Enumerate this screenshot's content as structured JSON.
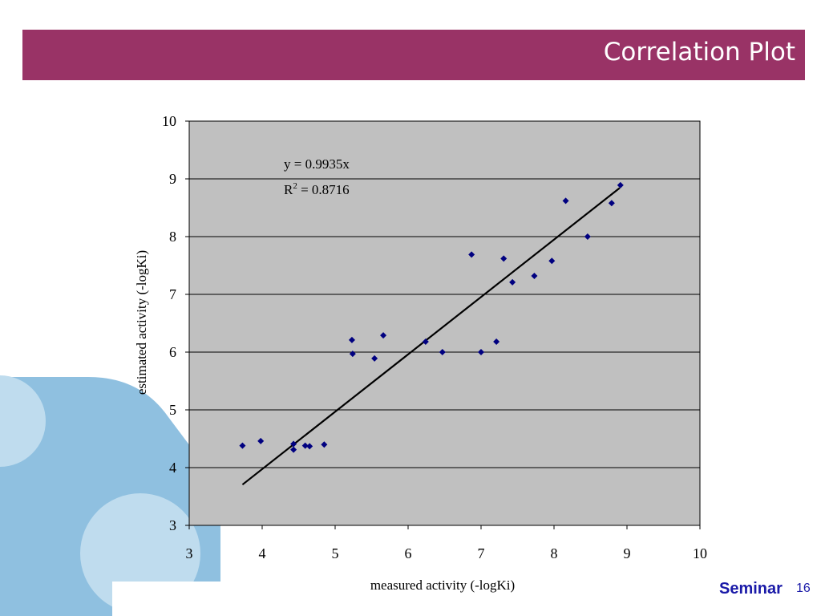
{
  "slide": {
    "title": "Correlation Plot",
    "footer_label": "Seminar",
    "page_number": "16"
  },
  "colors": {
    "title_bar": "#993366",
    "plot_background": "#c0c0c0",
    "gridline": "#000000",
    "marker": "#000080",
    "trendline": "#000000",
    "decoration_dark": "#8fc0e0",
    "decoration_light": "#bfdcee",
    "footer_text": "#1a1aa8"
  },
  "chart_data": {
    "type": "scatter",
    "xlabel": "measured activity (-logKi)",
    "ylabel": "estimated activity (-logKi)",
    "xlim": [
      3,
      10
    ],
    "ylim": [
      3,
      10
    ],
    "x_ticks": [
      "3",
      "4",
      "5",
      "6",
      "7",
      "8",
      "9",
      "10"
    ],
    "y_ticks": [
      "3",
      "4",
      "5",
      "6",
      "7",
      "8",
      "9",
      "10"
    ],
    "grid": "horizontal major gridlines",
    "legend": "none",
    "marker_shape": "diamond",
    "equation": {
      "line1": "y = 0.9935x",
      "r_prefix": "R",
      "r_sup": "2",
      "r_rest": " = 0.8716"
    },
    "trendline": {
      "slope": 0.9935,
      "intercept": 0,
      "x_from": 3.73,
      "x_to": 8.9
    },
    "series": [
      {
        "points": [
          {
            "x": 3.73,
            "y": 4.38
          },
          {
            "x": 3.98,
            "y": 4.46
          },
          {
            "x": 4.43,
            "y": 4.41
          },
          {
            "x": 4.43,
            "y": 4.31
          },
          {
            "x": 4.59,
            "y": 4.38
          },
          {
            "x": 4.65,
            "y": 4.37
          },
          {
            "x": 4.85,
            "y": 4.4
          },
          {
            "x": 5.23,
            "y": 6.21
          },
          {
            "x": 5.24,
            "y": 5.97
          },
          {
            "x": 5.54,
            "y": 5.89
          },
          {
            "x": 5.66,
            "y": 6.29
          },
          {
            "x": 6.24,
            "y": 6.18
          },
          {
            "x": 6.47,
            "y": 6.0
          },
          {
            "x": 6.87,
            "y": 7.69
          },
          {
            "x": 7.0,
            "y": 6.0
          },
          {
            "x": 7.21,
            "y": 6.18
          },
          {
            "x": 7.31,
            "y": 7.62
          },
          {
            "x": 7.43,
            "y": 7.21
          },
          {
            "x": 7.73,
            "y": 7.32
          },
          {
            "x": 7.97,
            "y": 7.58
          },
          {
            "x": 8.16,
            "y": 8.62
          },
          {
            "x": 8.46,
            "y": 8.0
          },
          {
            "x": 8.79,
            "y": 8.58
          },
          {
            "x": 8.91,
            "y": 8.89
          }
        ]
      }
    ]
  }
}
